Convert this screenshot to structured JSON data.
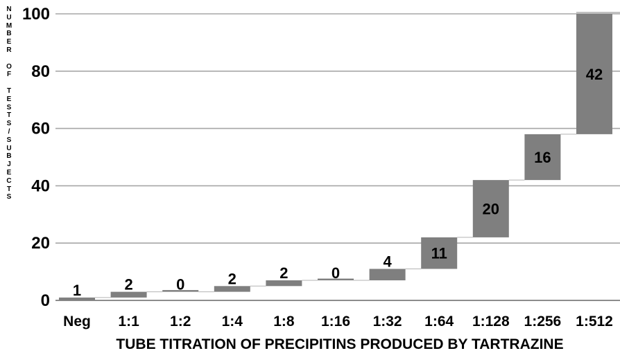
{
  "chart_data": {
    "type": "bar",
    "subtype": "waterfall",
    "xlabel": "TUBE TITRATION OF PRECIPITINS PRODUCED BY TARTRAZINE",
    "ylabel": "NUMBER OF TESTS/SUBJECTS",
    "categories": [
      "Neg",
      "1:1",
      "1:2",
      "1:4",
      "1:8",
      "1:16",
      "1:32",
      "1:64",
      "1:128",
      "1:256",
      "1:512"
    ],
    "values": [
      1,
      2,
      0,
      2,
      2,
      0,
      4,
      11,
      20,
      16,
      42
    ],
    "ylim": [
      0,
      100
    ],
    "yticks": [
      0,
      20,
      40,
      60,
      80,
      100
    ],
    "grid": true,
    "colors": {
      "bar": "#7f7f7f",
      "grid": "#a6a6a6",
      "text": "#000000"
    }
  }
}
